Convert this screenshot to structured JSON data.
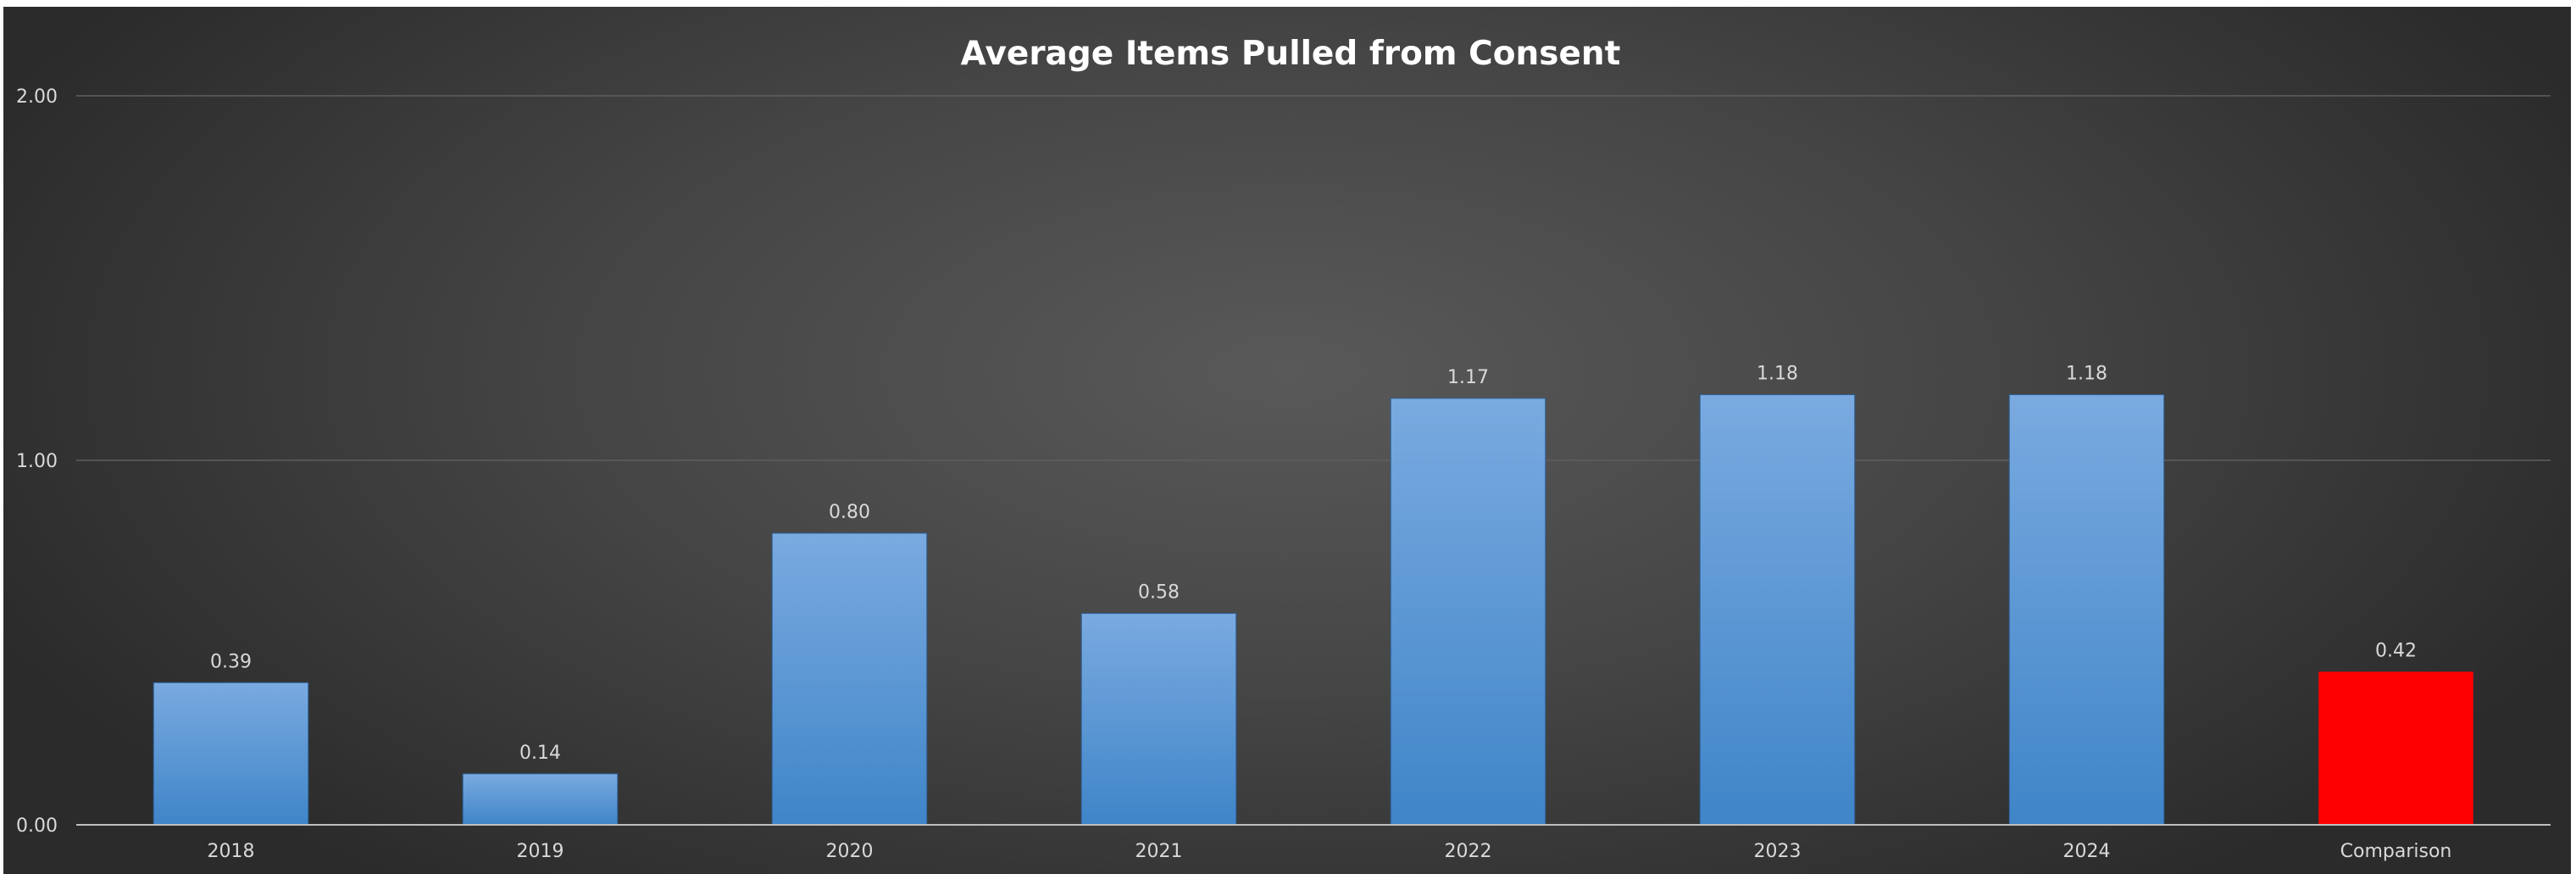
{
  "chart_data": {
    "type": "bar",
    "title": "Average Items Pulled from Consent",
    "xlabel": "",
    "ylabel": "",
    "categories": [
      "2018",
      "2019",
      "2020",
      "2021",
      "2022",
      "2023",
      "2024",
      "Comparison"
    ],
    "values": [
      0.39,
      0.14,
      0.8,
      0.58,
      1.17,
      1.18,
      1.18,
      0.42
    ],
    "value_labels": [
      "0.39",
      "0.14",
      "0.80",
      "0.58",
      "1.17",
      "1.18",
      "1.18",
      "0.42"
    ],
    "ylim": [
      0,
      2
    ],
    "y_ticks": [
      0,
      1,
      2
    ],
    "y_tick_labels": [
      "0.00",
      "1.00",
      "2.00"
    ],
    "grid": true,
    "legend": "none",
    "colors": {
      "bar_top": "#7aaae0",
      "bar_bottom": "#3f85c8",
      "highlight": "#ff0000",
      "highlight_category": "Comparison",
      "gridline": "#5f5f5f",
      "axis": "#bfbfbf",
      "text": "#d9d9d9"
    }
  }
}
